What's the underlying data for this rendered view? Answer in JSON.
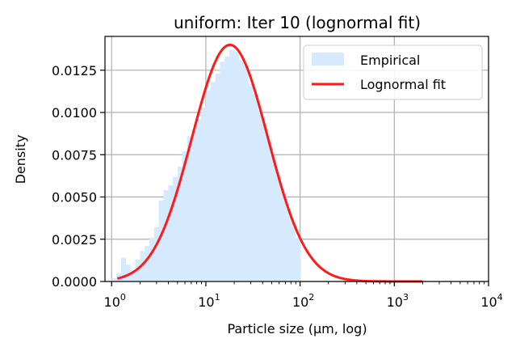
{
  "chart_data": {
    "type": "bar",
    "title": "uniform: Iter 10 (lognormal fit)",
    "xlabel": "Particle size (µm, log)",
    "ylabel": "Density",
    "xscale": "log",
    "xlim": [
      0.85,
      10000
    ],
    "ylim": [
      0,
      0.0145
    ],
    "grid": true,
    "legend_position": "top-right",
    "x_ticks": [
      {
        "value": 1,
        "base": "10",
        "exp": "0"
      },
      {
        "value": 10,
        "base": "10",
        "exp": "1"
      },
      {
        "value": 100,
        "base": "10",
        "exp": "2"
      },
      {
        "value": 1000,
        "base": "10",
        "exp": "3"
      },
      {
        "value": 10000,
        "base": "10",
        "exp": "4"
      }
    ],
    "y_ticks": [
      {
        "value": 0,
        "label": "0.0000"
      },
      {
        "value": 0.0025,
        "label": "0.0025"
      },
      {
        "value": 0.005,
        "label": "0.0050"
      },
      {
        "value": 0.0075,
        "label": "0.0075"
      },
      {
        "value": 0.01,
        "label": "0.0100"
      },
      {
        "value": 0.0125,
        "label": "0.0125"
      }
    ],
    "series": [
      {
        "name": "Empirical",
        "kind": "histogram",
        "color": "#d6eaff",
        "bins": [
          {
            "x0": 1.0,
            "x1": 1.12,
            "y": 0.0002
          },
          {
            "x0": 1.12,
            "x1": 1.26,
            "y": 0.0005
          },
          {
            "x0": 1.26,
            "x1": 1.41,
            "y": 0.0014
          },
          {
            "x0": 1.41,
            "x1": 1.58,
            "y": 0.001
          },
          {
            "x0": 1.58,
            "x1": 1.78,
            "y": 0.0007
          },
          {
            "x0": 1.78,
            "x1": 2.0,
            "y": 0.0013
          },
          {
            "x0": 2.0,
            "x1": 2.24,
            "y": 0.0018
          },
          {
            "x0": 2.24,
            "x1": 2.51,
            "y": 0.0021
          },
          {
            "x0": 2.51,
            "x1": 2.82,
            "y": 0.0026
          },
          {
            "x0": 2.82,
            "x1": 3.16,
            "y": 0.0032
          },
          {
            "x0": 3.16,
            "x1": 3.55,
            "y": 0.0048
          },
          {
            "x0": 3.55,
            "x1": 3.98,
            "y": 0.0054
          },
          {
            "x0": 3.98,
            "x1": 4.47,
            "y": 0.0057
          },
          {
            "x0": 4.47,
            "x1": 5.01,
            "y": 0.0062
          },
          {
            "x0": 5.01,
            "x1": 5.62,
            "y": 0.0068
          },
          {
            "x0": 5.62,
            "x1": 6.31,
            "y": 0.0077
          },
          {
            "x0": 6.31,
            "x1": 7.08,
            "y": 0.0086
          },
          {
            "x0": 7.08,
            "x1": 7.94,
            "y": 0.009
          },
          {
            "x0": 7.94,
            "x1": 8.91,
            "y": 0.0096
          },
          {
            "x0": 8.91,
            "x1": 10.0,
            "y": 0.0103
          },
          {
            "x0": 10.0,
            "x1": 11.2,
            "y": 0.0113
          },
          {
            "x0": 11.2,
            "x1": 12.6,
            "y": 0.0118
          },
          {
            "x0": 12.6,
            "x1": 14.1,
            "y": 0.0123
          },
          {
            "x0": 14.1,
            "x1": 15.8,
            "y": 0.013
          },
          {
            "x0": 15.8,
            "x1": 17.8,
            "y": 0.0133
          },
          {
            "x0": 17.8,
            "x1": 20.0,
            "y": 0.0137
          },
          {
            "x0": 20.0,
            "x1": 22.4,
            "y": 0.0136
          },
          {
            "x0": 22.4,
            "x1": 25.1,
            "y": 0.0131
          },
          {
            "x0": 25.1,
            "x1": 28.2,
            "y": 0.0128
          },
          {
            "x0": 28.2,
            "x1": 31.6,
            "y": 0.0117
          },
          {
            "x0": 31.6,
            "x1": 35.5,
            "y": 0.0111
          },
          {
            "x0": 35.5,
            "x1": 39.8,
            "y": 0.0101
          },
          {
            "x0": 39.8,
            "x1": 44.7,
            "y": 0.0092
          },
          {
            "x0": 44.7,
            "x1": 50.1,
            "y": 0.0084
          },
          {
            "x0": 50.1,
            "x1": 56.2,
            "y": 0.0074
          },
          {
            "x0": 56.2,
            "x1": 63.1,
            "y": 0.0063
          },
          {
            "x0": 63.1,
            "x1": 70.8,
            "y": 0.0053
          },
          {
            "x0": 70.8,
            "x1": 79.4,
            "y": 0.0043
          },
          {
            "x0": 79.4,
            "x1": 89.1,
            "y": 0.0035
          },
          {
            "x0": 89.1,
            "x1": 100.0,
            "y": 0.0026
          }
        ]
      },
      {
        "name": "Lognormal fit",
        "kind": "line",
        "color": "#ff1a1a",
        "mode": 18.0,
        "peak_density": 0.014,
        "sigma_ln": 0.93,
        "x_start": 1.15,
        "x_end": 2000
      }
    ]
  }
}
